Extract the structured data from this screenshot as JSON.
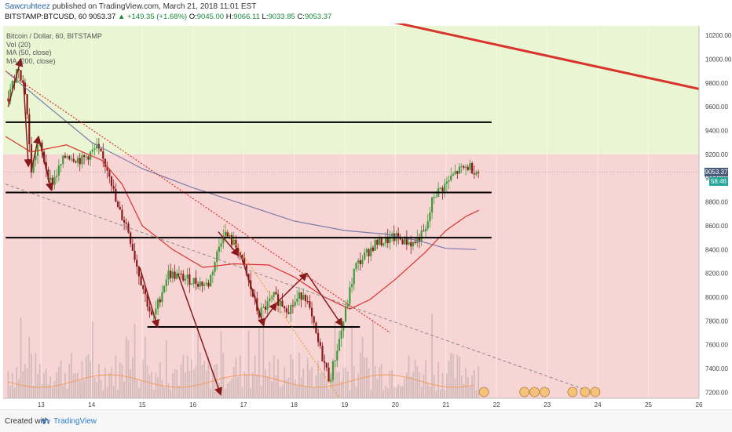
{
  "header": {
    "author": "Sawcruhteez",
    "published": " published on TradingView.com, March 21, 2018 11:01 EST",
    "symbol": "BITSTAMP:BTCUSD, 60",
    "last": "9053.37",
    "change": "▲ +149.35 (+1.68%)",
    "o_label": "O:",
    "o": "9045.00",
    "h_label": "H:",
    "h": "9066.11",
    "l_label": "L:",
    "l": "9033.85",
    "c_label": "C:",
    "c": "9053.37"
  },
  "legend": {
    "title": "Bitcoin / Dollar, 60, BITSTAMP",
    "vol": "Vol (20)",
    "ma50": "MA (50, close)",
    "ma200": "MA (200, close)"
  },
  "badges": {
    "price": "9053.37",
    "time": "58:46"
  },
  "footer": {
    "created": "Created with",
    "brand": "TradingView"
  },
  "colors": {
    "zone_green": "#eaf5d4",
    "zone_red": "#f7d5d5",
    "candle_up": "#3f9b3a",
    "candle_down": "#8a1a1a",
    "ma50": "#d9342b",
    "ma200": "#7b7ba8",
    "trend_red": "#d9342b",
    "support": "#000000",
    "volume_line": "#f29a5a"
  },
  "chart_data": {
    "type": "candlestick",
    "title": "Bitcoin / Dollar, 60, BITSTAMP",
    "x_ticks": [
      "13",
      "14",
      "15",
      "16",
      "17",
      "18",
      "19",
      "20",
      "21",
      "22",
      "23",
      "24",
      "25",
      "26"
    ],
    "y_ticks": [
      10200,
      10000,
      9800,
      9600,
      9400,
      9200,
      9000,
      8800,
      8600,
      8400,
      8200,
      8000,
      7800,
      7600,
      7400,
      7200
    ],
    "ylim": [
      7150,
      10280
    ],
    "xlim": [
      12.25,
      26.0
    ],
    "last_price": 9053.37,
    "zones": [
      {
        "from": 9200,
        "to": 10280,
        "color": "green"
      },
      {
        "from": 7150,
        "to": 9200,
        "color": "red"
      }
    ],
    "horizontal_levels": [
      {
        "y": 9470,
        "x_from": 12.3,
        "x_to": 21.9
      },
      {
        "y": 8880,
        "x_from": 12.3,
        "x_to": 21.9
      },
      {
        "y": 8500,
        "x_from": 12.3,
        "x_to": 21.9
      },
      {
        "y": 7750,
        "x_from": 15.1,
        "x_to": 19.3
      }
    ],
    "trendlines": [
      {
        "style": "solid-thick",
        "color": "red",
        "x1": 19.0,
        "y1": 10400,
        "x2": 26.0,
        "y2": 9750
      },
      {
        "style": "dotted",
        "color": "red",
        "x1": 12.3,
        "y1": 9900,
        "x2": 19.9,
        "y2": 7700
      },
      {
        "style": "dashed",
        "color": "grey",
        "x1": 12.3,
        "y1": 8950,
        "x2": 23.9,
        "y2": 7200
      },
      {
        "style": "dotted",
        "color": "orange",
        "x1": 16.6,
        "y1": 8600,
        "x2": 18.9,
        "y2": 7150
      }
    ],
    "arrows": [
      {
        "x1": 12.35,
        "y1": 9600,
        "x2": 12.6,
        "y2": 10000
      },
      {
        "x1": 12.65,
        "y1": 9820,
        "x2": 12.75,
        "y2": 9100
      },
      {
        "x1": 12.8,
        "y1": 9050,
        "x2": 12.95,
        "y2": 9350
      },
      {
        "x1": 12.95,
        "y1": 9350,
        "x2": 13.2,
        "y2": 8900
      },
      {
        "x1": 14.95,
        "y1": 8250,
        "x2": 15.3,
        "y2": 7750
      },
      {
        "x1": 15.7,
        "y1": 8200,
        "x2": 16.55,
        "y2": 7180
      },
      {
        "x1": 16.5,
        "y1": 8550,
        "x2": 16.9,
        "y2": 8350
      },
      {
        "x1": 16.95,
        "y1": 8350,
        "x2": 17.4,
        "y2": 7760
      },
      {
        "x1": 17.4,
        "y1": 7800,
        "x2": 17.65,
        "y2": 7950
      },
      {
        "x1": 17.65,
        "y1": 7950,
        "x2": 18.25,
        "y2": 8200
      },
      {
        "x1": 18.25,
        "y1": 8200,
        "x2": 18.95,
        "y2": 7760
      }
    ],
    "ma_200": {
      "x": [
        12.3,
        13.0,
        14.0,
        15.0,
        16.0,
        17.0,
        18.0,
        19.0,
        19.8,
        20.5,
        21.0,
        21.6
      ],
      "y": [
        9900,
        9650,
        9300,
        9080,
        8920,
        8780,
        8640,
        8560,
        8530,
        8470,
        8410,
        8400
      ]
    },
    "ma_50": {
      "x": [
        12.3,
        12.8,
        13.5,
        14.2,
        14.6,
        15.0,
        15.6,
        16.2,
        16.8,
        17.5,
        18.0,
        18.6,
        19.1,
        19.5,
        20.0,
        20.6,
        21.0,
        21.4,
        21.65
      ],
      "y": [
        9350,
        9220,
        9280,
        9150,
        8950,
        8600,
        8400,
        8250,
        8280,
        8270,
        8170,
        8000,
        7900,
        7980,
        8150,
        8380,
        8560,
        8680,
        8730
      ]
    },
    "volume_avg_line_note": "orange volume average"
  }
}
